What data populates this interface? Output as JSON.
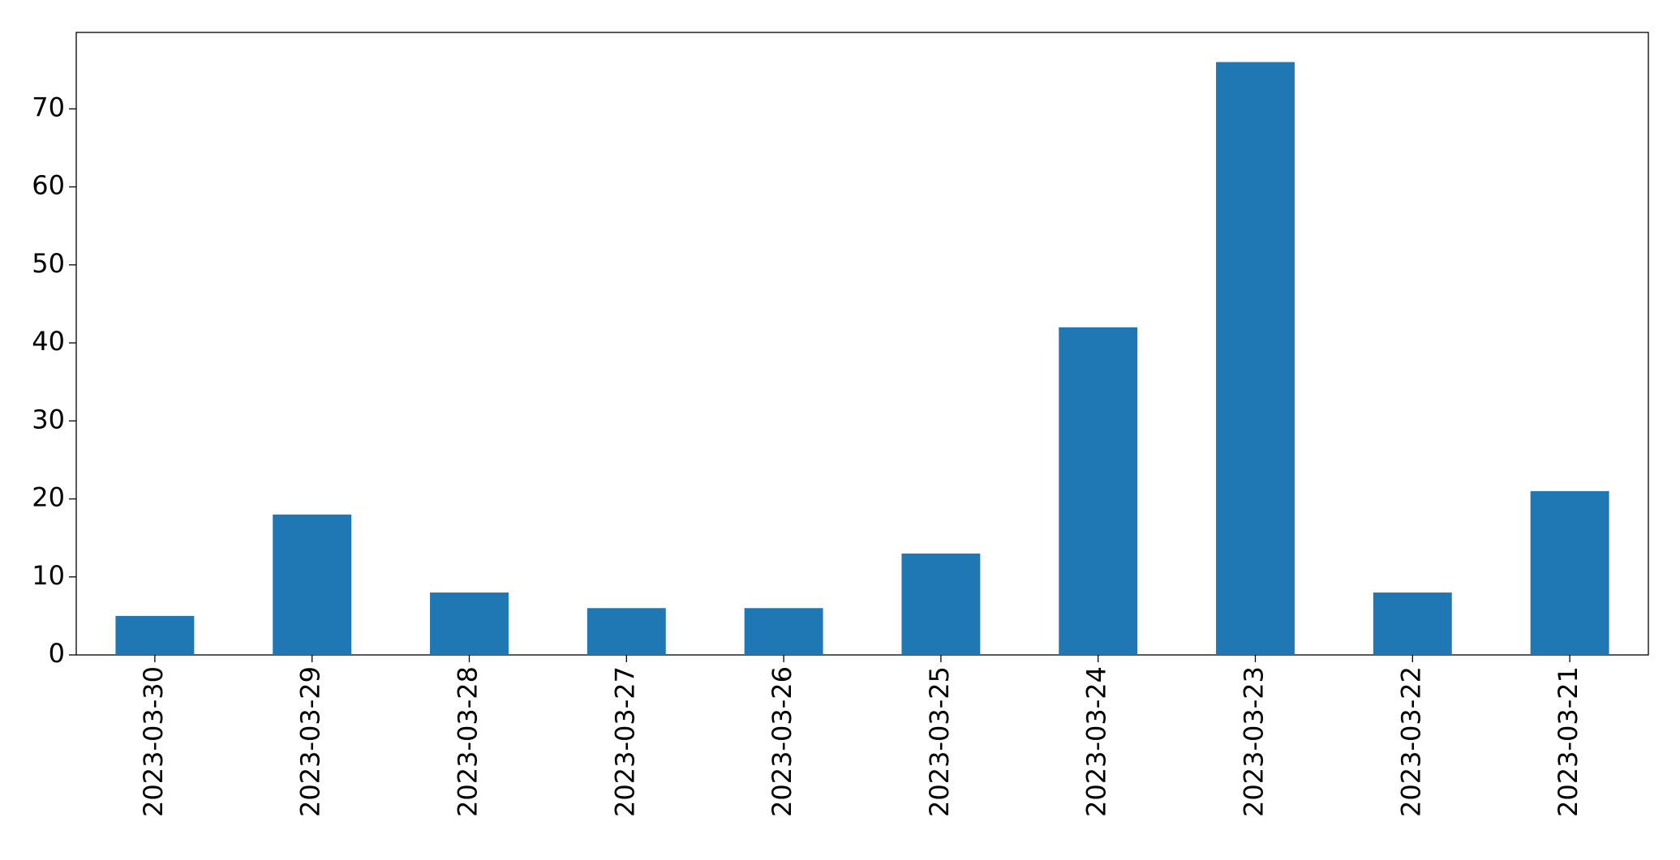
{
  "chart_data": {
    "type": "bar",
    "categories": [
      "2023-03-30",
      "2023-03-29",
      "2023-03-28",
      "2023-03-27",
      "2023-03-26",
      "2023-03-25",
      "2023-03-24",
      "2023-03-23",
      "2023-03-22",
      "2023-03-21"
    ],
    "values": [
      5,
      18,
      8,
      6,
      6,
      13,
      42,
      76,
      8,
      21
    ],
    "color": "#1f77b4",
    "ylim": [
      0,
      79.8
    ],
    "yticks": [
      0,
      10,
      20,
      30,
      40,
      50,
      60,
      70
    ],
    "grid": false
  }
}
